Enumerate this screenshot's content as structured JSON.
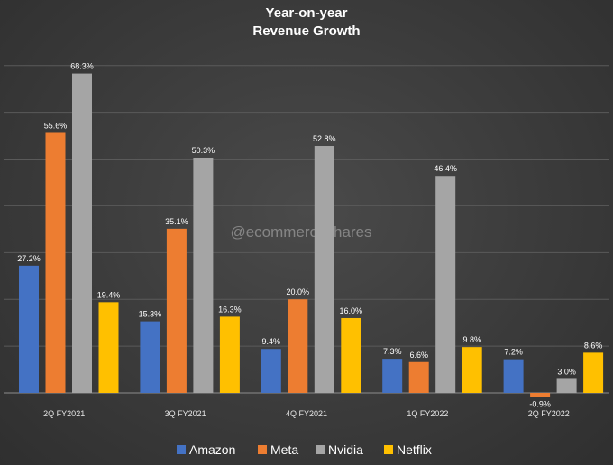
{
  "chart_data": {
    "type": "bar",
    "title": "Year-on-year",
    "subtitle": "Revenue Growth",
    "xlabel": "",
    "ylabel": "",
    "categories": [
      "2Q FY2021",
      "3Q FY2021",
      "4Q FY2021",
      "1Q FY2022",
      "2Q FY2022"
    ],
    "series": [
      {
        "name": "Amazon",
        "color": "#4472c4",
        "values": [
          27.2,
          15.3,
          9.4,
          7.3,
          7.2
        ],
        "labels": [
          "27.2%",
          "15.3%",
          "9.4%",
          "7.3%",
          "7.2%"
        ]
      },
      {
        "name": "Meta",
        "color": "#ed7d31",
        "values": [
          55.6,
          35.1,
          20.0,
          6.6,
          -0.9
        ],
        "labels": [
          "55.6%",
          "35.1%",
          "20.0%",
          "6.6%",
          "-0.9%"
        ]
      },
      {
        "name": "Nvidia",
        "color": "#a5a5a5",
        "values": [
          68.3,
          50.3,
          52.8,
          46.4,
          3.0
        ],
        "labels": [
          "68.3%",
          "50.3%",
          "52.8%",
          "46.4%",
          "3.0%"
        ]
      },
      {
        "name": "Netflix",
        "color": "#ffc000",
        "values": [
          19.4,
          16.3,
          16.0,
          9.8,
          8.6
        ],
        "labels": [
          "19.4%",
          "16.3%",
          "16.0%",
          "9.8%",
          "8.6%"
        ]
      }
    ],
    "ylim": [
      -4,
      74
    ],
    "grid": true,
    "legend_position": "bottom",
    "watermark": "@ecommerceshares"
  }
}
